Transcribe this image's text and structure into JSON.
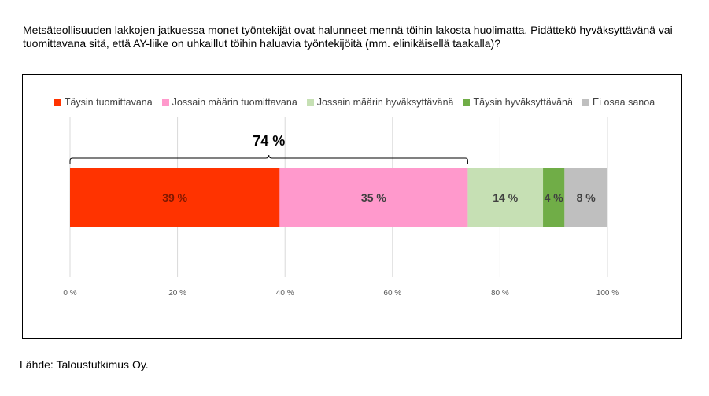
{
  "question": "Metsäteollisuuden lakkojen jatkuessa monet työntekijät ovat halunneet mennä töihin lakosta huolimatta. Pidättekö hyväksyttävänä vai tuomittavana sitä, että AY-liike on uhkaillut töihin haluavia työntekijöitä (mm. elinikäisellä taakalla)?",
  "source": "Lähde: Taloustutkimus Oy.",
  "bracket_label": "74 %",
  "chart_data": {
    "type": "bar",
    "orientation": "horizontal",
    "stacked": true,
    "xlim": [
      0,
      100
    ],
    "x_ticks": [
      "0 %",
      "20 %",
      "40 %",
      "60 %",
      "80 %",
      "100 %"
    ],
    "grid": true,
    "legend_position": "top",
    "series": [
      {
        "name": "Täysin tuomittavana",
        "value": 39,
        "label": "39 %",
        "color": "#ff3300",
        "label_color": "#7f1800"
      },
      {
        "name": "Jossain määrin tuomittavana",
        "value": 35,
        "label": "35 %",
        "color": "#ff99cc",
        "label_color": "#404040"
      },
      {
        "name": "Jossain määrin hyväksyttävänä",
        "value": 14,
        "label": "14 %",
        "color": "#c6e0b4",
        "label_color": "#404040"
      },
      {
        "name": "Täysin hyväksyttävänä",
        "value": 4,
        "label": "4 %",
        "color": "#70ad47",
        "label_color": "#404040"
      },
      {
        "name": "Ei osaa sanoa",
        "value": 8,
        "label": "8 %",
        "color": "#bfbfbf",
        "label_color": "#404040"
      }
    ]
  }
}
